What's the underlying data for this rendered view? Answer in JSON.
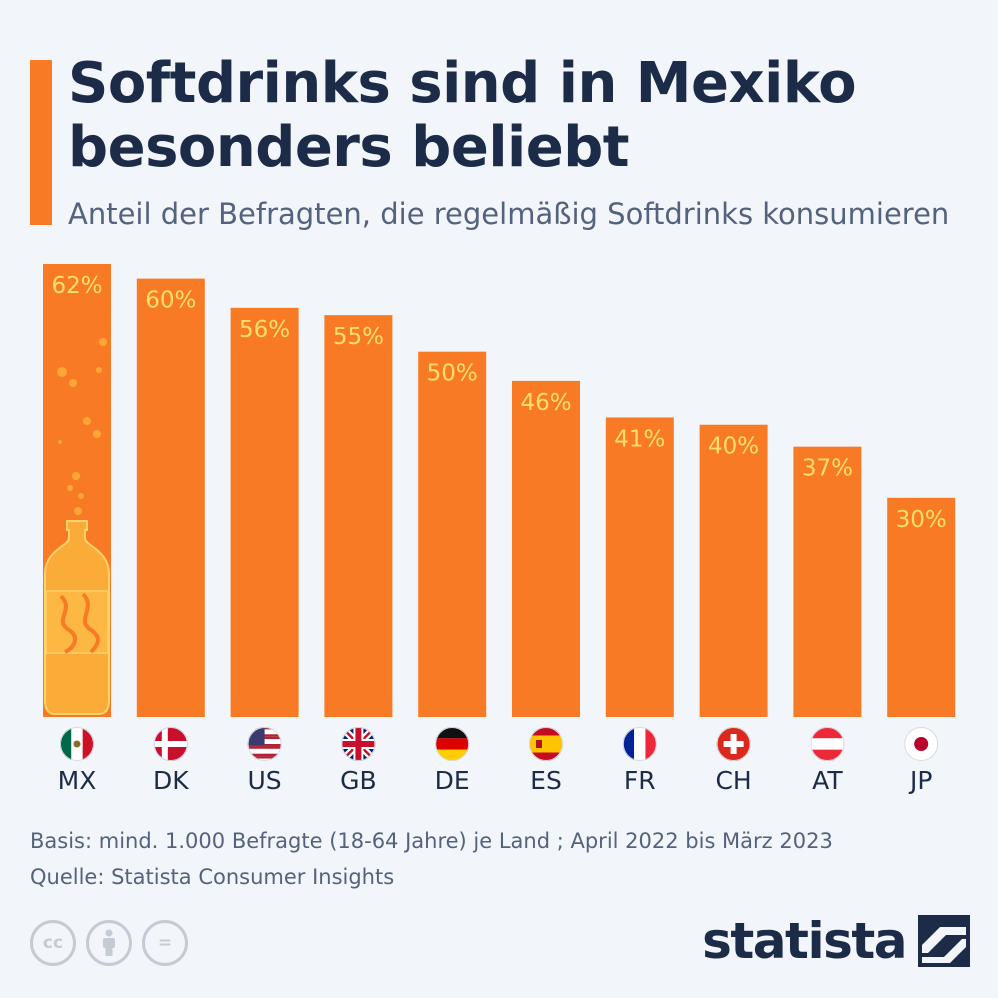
{
  "header": {
    "title": "Softdrinks sind in Mexiko besonders beliebt",
    "subtitle": "Anteil der Befragten, die regelmäßig Softdrinks konsumieren"
  },
  "chart_data": {
    "type": "bar",
    "title": "Softdrinks sind in Mexiko besonders beliebt",
    "subtitle": "Anteil der Befragten, die regelmäßig Softdrinks konsumieren",
    "categories": [
      "MX",
      "DK",
      "US",
      "GB",
      "DE",
      "ES",
      "FR",
      "CH",
      "AT",
      "JP"
    ],
    "values": [
      62,
      60,
      56,
      55,
      50,
      46,
      41,
      40,
      37,
      30
    ],
    "value_labels": [
      "62%",
      "60%",
      "56%",
      "55%",
      "50%",
      "46%",
      "41%",
      "40%",
      "37%",
      "30%"
    ],
    "unit": "%",
    "ylim": [
      0,
      62
    ],
    "grid": false,
    "legend": "none",
    "bar_color": "#f97a24",
    "label_color": "#ffe067"
  },
  "flags": [
    "mexico-flag-icon",
    "denmark-flag-icon",
    "usa-flag-icon",
    "uk-flag-icon",
    "germany-flag-icon",
    "spain-flag-icon",
    "france-flag-icon",
    "switzerland-flag-icon",
    "austria-flag-icon",
    "japan-flag-icon"
  ],
  "footer": {
    "basis": "Basis: mind. 1.000 Befragte (18-64 Jahre) je Land ; April 2022 bis März 2023",
    "source": "Quelle: Statista Consumer Insights",
    "license_icons": [
      "cc-icon",
      "attribution-icon",
      "no-derivatives-icon"
    ],
    "license_glyphs": [
      "cc",
      "",
      "="
    ],
    "logo": "statista"
  },
  "colors": {
    "background": "#f2f5fa",
    "accent": "#f97a24",
    "title": "#1b2b48",
    "text": "#54637d",
    "bottle": "#fbb03b"
  }
}
